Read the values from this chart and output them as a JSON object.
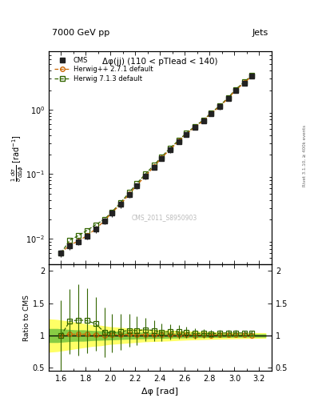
{
  "title_left": "7000 GeV pp",
  "title_right": "Jets",
  "plot_title": "Δφ(jj) (110 < pTlead < 140)",
  "watermark": "CMS_2011_S8950903",
  "right_label": "Rivet 3.1.10, ≥ 400k events",
  "xlabel": "Δφ [rad]",
  "ylabel": "$\\frac{1}{\\sigma}\\frac{d\\sigma}{d\\Delta\\phi}$ [rad$^{-1}$]",
  "ylabel_ratio": "Ratio to CMS",
  "xlim": [
    1.5,
    3.3
  ],
  "ylim_main": [
    0.004,
    8.0
  ],
  "ylim_ratio": [
    0.45,
    2.1
  ],
  "cms_x": [
    1.6,
    1.67,
    1.74,
    1.81,
    1.88,
    1.95,
    2.01,
    2.08,
    2.15,
    2.21,
    2.28,
    2.35,
    2.41,
    2.48,
    2.55,
    2.61,
    2.68,
    2.75,
    2.81,
    2.88,
    2.95,
    3.01,
    3.08,
    3.14
  ],
  "cms_y": [
    0.006,
    0.0078,
    0.009,
    0.011,
    0.014,
    0.019,
    0.025,
    0.034,
    0.048,
    0.066,
    0.092,
    0.128,
    0.175,
    0.238,
    0.318,
    0.41,
    0.53,
    0.67,
    0.86,
    1.1,
    1.48,
    1.98,
    2.58,
    3.28
  ],
  "cms_yerr": [
    0.0008,
    0.001,
    0.001,
    0.0013,
    0.0018,
    0.002,
    0.003,
    0.004,
    0.005,
    0.007,
    0.009,
    0.012,
    0.016,
    0.022,
    0.028,
    0.036,
    0.045,
    0.058,
    0.072,
    0.092,
    0.12,
    0.16,
    0.2,
    0.26
  ],
  "hpp_x": [
    1.6,
    1.67,
    1.74,
    1.81,
    1.88,
    1.95,
    2.01,
    2.08,
    2.15,
    2.21,
    2.28,
    2.35,
    2.41,
    2.48,
    2.55,
    2.61,
    2.68,
    2.75,
    2.81,
    2.88,
    2.95,
    3.01,
    3.08,
    3.14
  ],
  "hpp_y": [
    0.006,
    0.008,
    0.0092,
    0.0112,
    0.0142,
    0.019,
    0.0252,
    0.0342,
    0.049,
    0.067,
    0.0935,
    0.13,
    0.177,
    0.242,
    0.323,
    0.416,
    0.533,
    0.675,
    0.865,
    1.11,
    1.5,
    2.0,
    2.6,
    3.3
  ],
  "hpp_color": "#cc6600",
  "h713_x": [
    1.6,
    1.67,
    1.74,
    1.81,
    1.88,
    1.95,
    2.01,
    2.08,
    2.15,
    2.21,
    2.28,
    2.35,
    2.41,
    2.48,
    2.55,
    2.61,
    2.68,
    2.75,
    2.81,
    2.88,
    2.95,
    3.01,
    3.08,
    3.14
  ],
  "h713_y": [
    0.006,
    0.0095,
    0.0112,
    0.0135,
    0.0165,
    0.02,
    0.026,
    0.036,
    0.052,
    0.071,
    0.1,
    0.138,
    0.184,
    0.252,
    0.336,
    0.43,
    0.548,
    0.692,
    0.886,
    1.14,
    1.54,
    2.06,
    2.68,
    3.4
  ],
  "h713_color": "#336600",
  "hpp_ratio": [
    1.0,
    1.02,
    1.02,
    1.02,
    1.01,
    1.0,
    1.01,
    1.01,
    1.02,
    1.015,
    1.015,
    1.016,
    1.011,
    1.017,
    1.016,
    1.015,
    1.006,
    1.007,
    1.006,
    1.009,
    1.014,
    1.011,
    1.008,
    1.006
  ],
  "hpp_ratio_err": [
    0.025,
    0.03,
    0.03,
    0.032,
    0.032,
    0.028,
    0.028,
    0.026,
    0.024,
    0.022,
    0.02,
    0.018,
    0.016,
    0.015,
    0.013,
    0.012,
    0.012,
    0.011,
    0.01,
    0.01,
    0.01,
    0.01,
    0.01,
    0.01
  ],
  "h713_ratio": [
    1.0,
    1.22,
    1.24,
    1.23,
    1.18,
    1.05,
    1.04,
    1.06,
    1.08,
    1.075,
    1.09,
    1.078,
    1.051,
    1.059,
    1.056,
    1.049,
    1.034,
    1.033,
    1.03,
    1.036,
    1.04,
    1.04,
    1.038,
    1.037
  ],
  "h713_ratio_err_lo": [
    0.55,
    0.5,
    0.55,
    0.5,
    0.42,
    0.38,
    0.3,
    0.28,
    0.25,
    0.22,
    0.18,
    0.16,
    0.14,
    0.12,
    0.1,
    0.09,
    0.08,
    0.07,
    0.06,
    0.055,
    0.05,
    0.045,
    0.04,
    0.038
  ],
  "h713_ratio_err_hi": [
    0.55,
    0.5,
    0.55,
    0.5,
    0.42,
    0.38,
    0.3,
    0.28,
    0.25,
    0.22,
    0.18,
    0.16,
    0.14,
    0.12,
    0.1,
    0.09,
    0.08,
    0.07,
    0.06,
    0.055,
    0.05,
    0.045,
    0.04,
    0.038
  ],
  "cms_band_x": [
    1.5,
    1.57,
    1.64,
    1.71,
    1.78,
    1.85,
    1.92,
    1.99,
    2.06,
    2.13,
    2.2,
    2.27,
    2.34,
    2.41,
    2.48,
    2.55,
    2.62,
    2.69,
    2.76,
    2.83,
    2.9,
    2.97,
    3.04,
    3.11,
    3.18,
    3.25
  ],
  "cms_band_inner": [
    0.1,
    0.1,
    0.09,
    0.08,
    0.08,
    0.07,
    0.065,
    0.06,
    0.055,
    0.05,
    0.045,
    0.042,
    0.038,
    0.035,
    0.032,
    0.03,
    0.028,
    0.026,
    0.024,
    0.022,
    0.021,
    0.02,
    0.019,
    0.018,
    0.018,
    0.018
  ],
  "cms_band_outer": [
    0.25,
    0.24,
    0.22,
    0.2,
    0.18,
    0.16,
    0.15,
    0.13,
    0.12,
    0.11,
    0.1,
    0.09,
    0.085,
    0.08,
    0.075,
    0.068,
    0.062,
    0.058,
    0.054,
    0.05,
    0.046,
    0.043,
    0.04,
    0.038,
    0.036,
    0.035
  ],
  "legend_entries": [
    "CMS",
    "Herwig++ 2.7.1 default",
    "Herwig 7.1.3 default"
  ],
  "cms_marker_color": "#222222",
  "cms_marker_size": 5,
  "background_color": "#ffffff"
}
